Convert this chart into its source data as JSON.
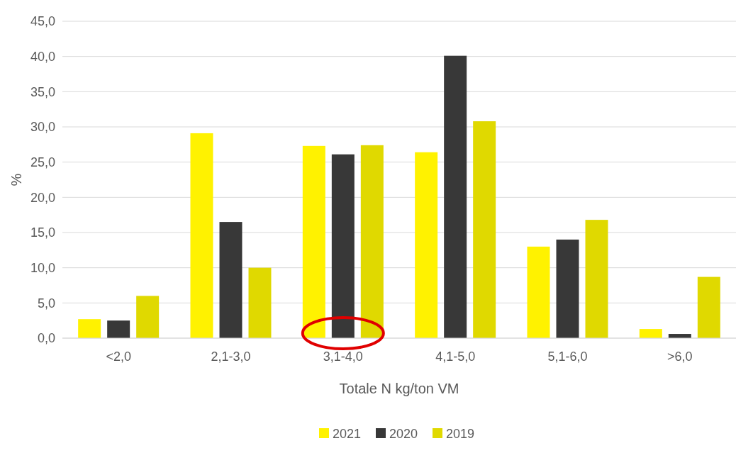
{
  "chart_data": {
    "type": "bar",
    "xlabel": "Totale N kg/ton VM",
    "ylabel": "%",
    "categories": [
      "<2,0",
      "2,1-3,0",
      "3,1-4,0",
      "4,1-5,0",
      "5,1-6,0",
      ">6,0"
    ],
    "series": [
      {
        "name": "2021",
        "color": "#fff200",
        "values": [
          2.7,
          29.1,
          27.3,
          26.4,
          13.0,
          1.3
        ]
      },
      {
        "name": "2020",
        "color": "#383838",
        "values": [
          2.5,
          16.5,
          26.1,
          40.1,
          14.0,
          0.6
        ]
      },
      {
        "name": "2019",
        "color": "#e0d900",
        "values": [
          6.0,
          10.0,
          27.4,
          30.8,
          16.8,
          8.7
        ]
      }
    ],
    "ylim": [
      0,
      45
    ],
    "yticks": [
      {
        "value": 0,
        "label": "0,0"
      },
      {
        "value": 5,
        "label": "5,0"
      },
      {
        "value": 10,
        "label": "10,0"
      },
      {
        "value": 15,
        "label": "15,0"
      },
      {
        "value": 20,
        "label": "20,0"
      },
      {
        "value": 25,
        "label": "25,0"
      },
      {
        "value": 30,
        "label": "30,0"
      },
      {
        "value": 35,
        "label": "35,0"
      },
      {
        "value": 40,
        "label": "40,0"
      },
      {
        "value": 45,
        "label": "45,0"
      }
    ],
    "grid": "y",
    "legend": "bottom"
  }
}
